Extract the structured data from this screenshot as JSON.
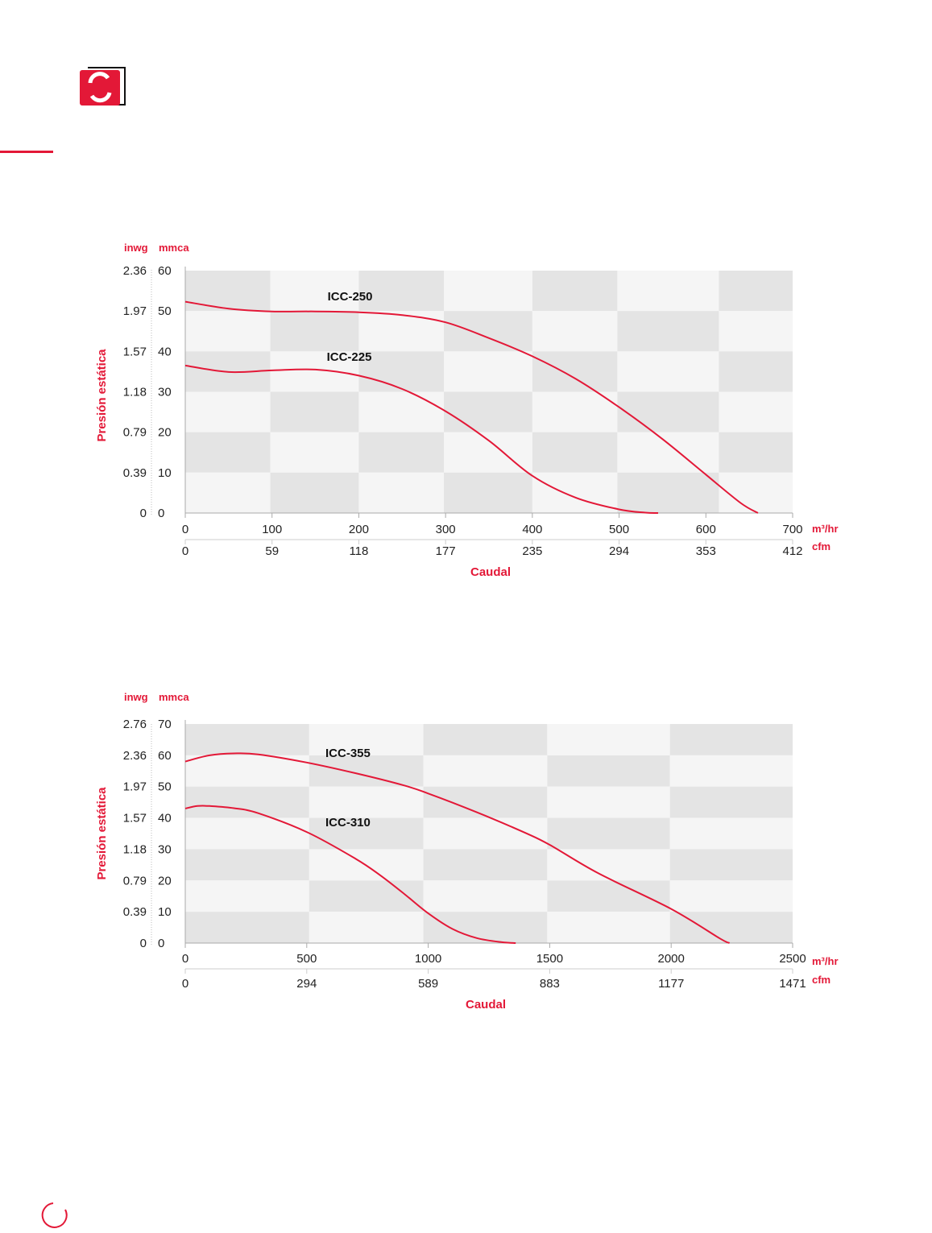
{
  "colors": {
    "accent": "#e31837",
    "grid_dark": "#e4e4e4",
    "grid_light": "#f5f5f5"
  },
  "icons": {
    "logo": "rotating-arrows-logo-icon",
    "corner": "arc-corner-icon"
  },
  "chart_data": [
    {
      "type": "line",
      "xlabel": "Caudal",
      "ylabel": "Presión estática",
      "x_unit": "m³/hr",
      "x_secondary_unit": "cfm",
      "y_unit": "mmca",
      "y_secondary_unit": "inwg",
      "xlim": [
        0,
        700
      ],
      "ylim": [
        0,
        60
      ],
      "x_ticks": [
        0,
        100,
        200,
        300,
        400,
        500,
        600,
        700
      ],
      "x_secondary_ticks": [
        "0",
        "59",
        "118",
        "177",
        "235",
        "294",
        "353",
        "412"
      ],
      "y_ticks": [
        0,
        10,
        20,
        30,
        40,
        50,
        60
      ],
      "y_secondary_ticks": [
        "0",
        "0.39",
        "0.79",
        "1.18",
        "1.57",
        "1.97",
        "2.36"
      ],
      "x_bands": [
        0,
        98,
        200,
        298,
        400,
        498,
        615,
        700
      ],
      "series": [
        {
          "name": "ICC-250",
          "label_at": [
            164,
            52.6
          ],
          "x": [
            0,
            50,
            100,
            150,
            200,
            250,
            300,
            350,
            400,
            450,
            500,
            550,
            600,
            640,
            660
          ],
          "y": [
            52.3,
            50.6,
            49.9,
            49.9,
            49.7,
            49.0,
            47.2,
            43.3,
            38.8,
            33.2,
            26.2,
            18.3,
            9.5,
            2.5,
            0
          ]
        },
        {
          "name": "ICC-225",
          "label_at": [
            163,
            37.7
          ],
          "x": [
            0,
            50,
            100,
            150,
            200,
            250,
            300,
            350,
            400,
            450,
            500,
            530,
            545
          ],
          "y": [
            36.5,
            34.9,
            35.3,
            35.5,
            34.0,
            30.7,
            25.2,
            17.9,
            9.2,
            3.8,
            0.9,
            0.1,
            0
          ]
        }
      ],
      "grid": true
    },
    {
      "type": "line",
      "xlabel": "Caudal",
      "ylabel": "Presión estática",
      "x_unit": "m³/hr",
      "x_secondary_unit": "cfm",
      "y_unit": "mmca",
      "y_secondary_unit": "inwg",
      "xlim": [
        0,
        2500
      ],
      "ylim": [
        0,
        70
      ],
      "x_ticks": [
        0,
        500,
        1000,
        1500,
        2000,
        2500
      ],
      "x_secondary_ticks": [
        "0",
        "294",
        "589",
        "883",
        "1177",
        "1471"
      ],
      "y_ticks": [
        0,
        10,
        20,
        30,
        40,
        50,
        60,
        70
      ],
      "y_secondary_ticks": [
        "0",
        "0.39",
        "0.79",
        "1.18",
        "1.57",
        "1.97",
        "2.36",
        "2.76"
      ],
      "x_bands": [
        0,
        510,
        980,
        1490,
        1995,
        2500
      ],
      "series": [
        {
          "name": "ICC-355",
          "label_at": [
            577,
            59.5
          ],
          "x": [
            0,
            100,
            200,
            300,
            500,
            700,
            900,
            1000,
            1200,
            1400,
            1500,
            1700,
            2000,
            2200,
            2240
          ],
          "y": [
            58.0,
            60.0,
            60.6,
            60.3,
            57.7,
            54.3,
            50.4,
            47.8,
            41.8,
            35.2,
            31.4,
            22.3,
            10.9,
            1.5,
            0
          ]
        },
        {
          "name": "ICC-310",
          "label_at": [
            577,
            37.3
          ],
          "x": [
            0,
            50,
            100,
            200,
            300,
            500,
            700,
            800,
            900,
            1000,
            1100,
            1200,
            1300,
            1360
          ],
          "y": [
            43.0,
            43.8,
            43.8,
            43.1,
            41.5,
            35.5,
            27.0,
            21.8,
            15.8,
            9.5,
            4.5,
            1.6,
            0.3,
            0
          ]
        }
      ],
      "grid": true
    }
  ]
}
